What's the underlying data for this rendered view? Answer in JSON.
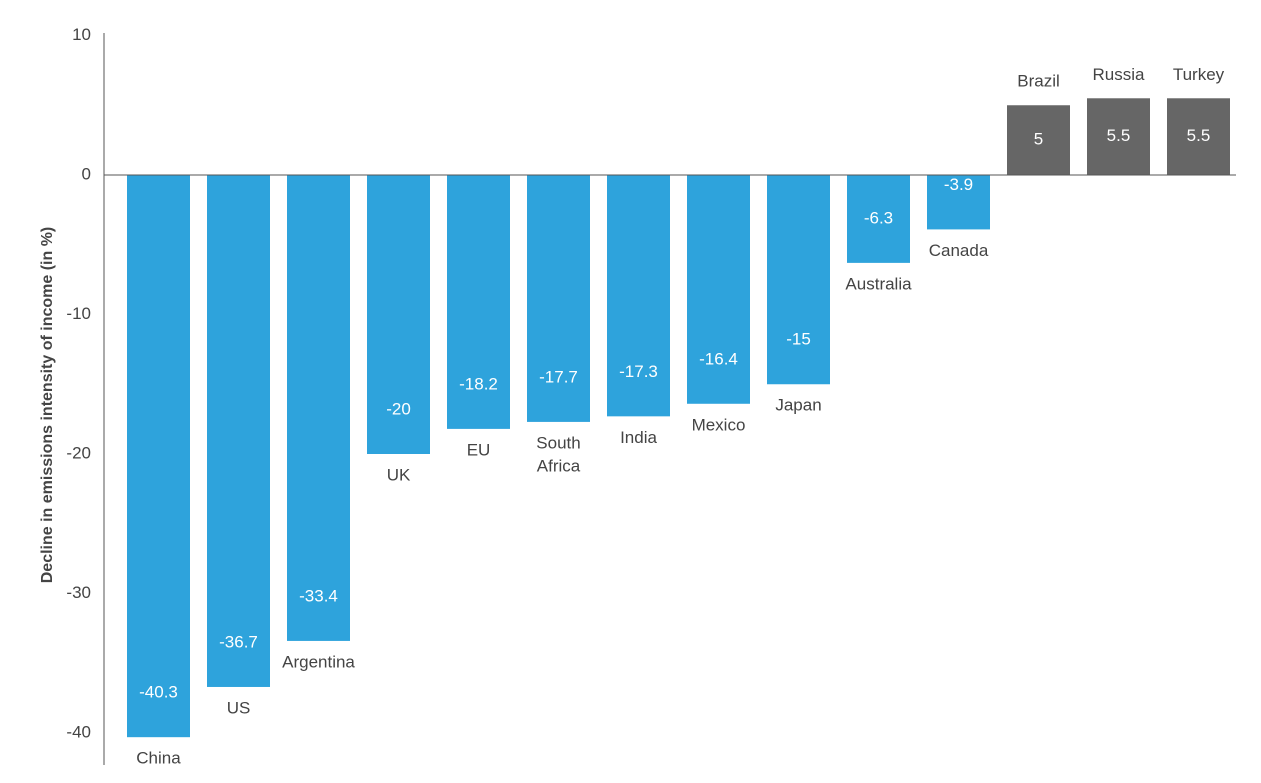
{
  "chart_data": {
    "type": "bar",
    "title": "",
    "xlabel": "",
    "ylabel": "Decline in emissions intensity of income (in %)",
    "ylim": [
      -40,
      10
    ],
    "yticks": [
      10,
      0,
      -10,
      -20,
      -30,
      -40
    ],
    "ytick_labels": [
      "10",
      "0",
      "-10",
      "-20",
      "-30",
      "-40"
    ],
    "grid": false,
    "legend": "none",
    "categories": [
      "China",
      "US",
      "Argentina",
      "UK",
      "EU",
      "South Africa",
      "India",
      "Mexico",
      "Japan",
      "Australia",
      "Canada",
      "Brazil",
      "Russia",
      "Turkey"
    ],
    "category_lines": [
      [
        "China"
      ],
      [
        "US"
      ],
      [
        "Argentina"
      ],
      [
        "UK"
      ],
      [
        "EU"
      ],
      [
        "South",
        "Africa"
      ],
      [
        "India"
      ],
      [
        "Mexico"
      ],
      [
        "Japan"
      ],
      [
        "Australia"
      ],
      [
        "Canada"
      ],
      [
        "Brazil"
      ],
      [
        "Russia"
      ],
      [
        "Turkey"
      ]
    ],
    "values": [
      -40.3,
      -36.7,
      -33.4,
      -20,
      -18.2,
      -17.7,
      -17.3,
      -16.4,
      -15,
      -6.3,
      -3.9,
      5,
      5.5,
      5.5
    ],
    "value_labels": [
      "-40.3",
      "-36.7",
      "-33.4",
      "-20",
      "-18.2",
      "-17.7",
      "-17.3",
      "-16.4",
      "-15",
      "-6.3",
      "-3.9",
      "5",
      "5.5",
      "5.5"
    ],
    "colors": {
      "negative": "#2ea3dc",
      "positive": "#666666",
      "axis": "#555555"
    }
  }
}
